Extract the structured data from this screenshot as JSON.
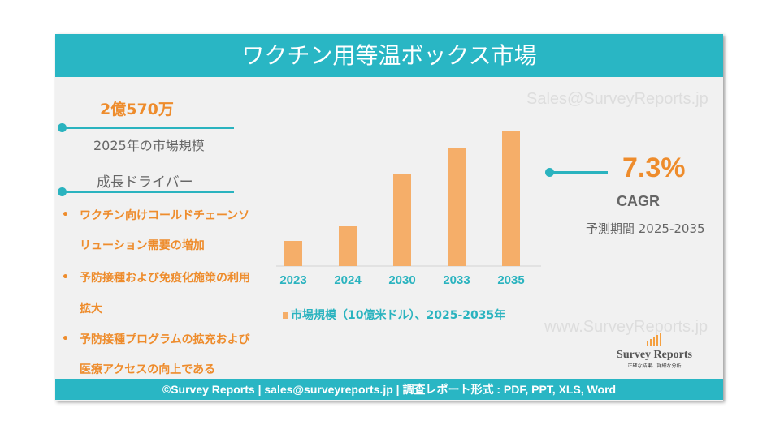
{
  "title": "ワクチン用等温ボックス市場",
  "market_size": {
    "value": "2億570万",
    "label": "2025年の市場規模"
  },
  "drivers": {
    "heading": "成長ドライバー",
    "items": [
      [
        "ワクチン向けコールドチェーンソ",
        "リューション需要の増加"
      ],
      [
        "予防接種および免疫化施策の利用",
        "拡大"
      ],
      [
        "予防接種プログラムの拡充および",
        "医療アクセスの向上である"
      ]
    ]
  },
  "cagr": {
    "value": "7.3%",
    "label": "CAGR",
    "period": "予測期間 2025-2035"
  },
  "watermarks": {
    "top": "Sales@SurveyReports.jp",
    "bottom": "www.SurveyReports.jp"
  },
  "logo": {
    "name": "Survey Reports",
    "tagline": "正確な結果、詳細な分析"
  },
  "footer": "©Survey Reports | sales@surveyreports.jp |  調査レポート形式 : PDF, PPT, XLS, Word",
  "colors": {
    "accent": "#29b6c4",
    "bar": "#f5ae69",
    "highlight": "#ee8c2c"
  },
  "chart_data": {
    "type": "bar",
    "categories": [
      "2023",
      "2024",
      "2030",
      "2033",
      "2035"
    ],
    "values": [
      0.31,
      0.49,
      1.14,
      1.46,
      1.66
    ],
    "legend": "市場規模（10億米ドル）、2025-2035年",
    "legend_placement": "bottom",
    "grid": false
  }
}
